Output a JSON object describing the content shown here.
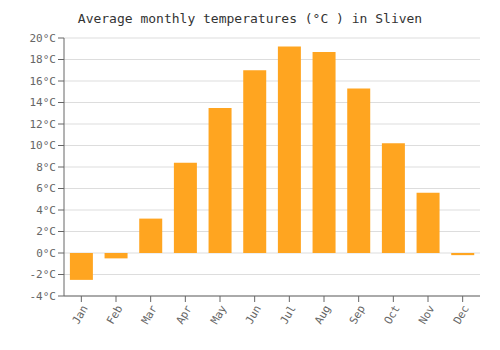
{
  "chart_data": {
    "type": "bar",
    "title": "Average monthly temperatures (°C ) in Sliven",
    "categories": [
      "Jan",
      "Feb",
      "Mar",
      "Apr",
      "May",
      "Jun",
      "Jul",
      "Aug",
      "Sep",
      "Oct",
      "Nov",
      "Dec"
    ],
    "values": [
      -2.5,
      -0.5,
      3.2,
      8.4,
      13.5,
      17.0,
      19.2,
      18.7,
      15.3,
      10.2,
      5.6,
      -0.2
    ],
    "color": "#FFA520",
    "ylim": [
      -4,
      20
    ],
    "yticks": [
      {
        "value": -4,
        "label": "-4°C"
      },
      {
        "value": -2,
        "label": "-2°C"
      },
      {
        "value": 0,
        "label": "0°C"
      },
      {
        "value": 2,
        "label": "2°C"
      },
      {
        "value": 4,
        "label": "4°C"
      },
      {
        "value": 6,
        "label": "6°C"
      },
      {
        "value": 8,
        "label": "8°C"
      },
      {
        "value": 10,
        "label": "10°C"
      },
      {
        "value": 12,
        "label": "12°C"
      },
      {
        "value": 14,
        "label": "14°C"
      },
      {
        "value": 16,
        "label": "16°C"
      },
      {
        "value": 18,
        "label": "18°C"
      },
      {
        "value": 20,
        "label": "20°C"
      }
    ],
    "grid": true
  }
}
